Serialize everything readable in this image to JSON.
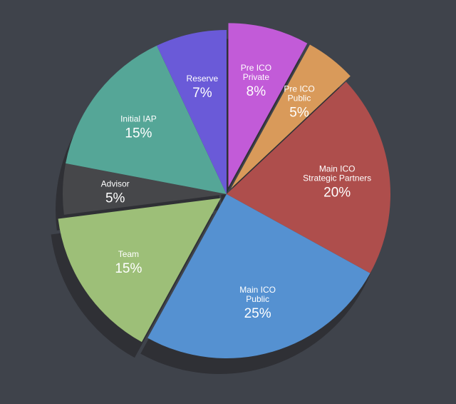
{
  "chart_data": {
    "type": "pie",
    "labels": [
      [
        "Pre ICO",
        "Private"
      ],
      [
        "Pre ICO",
        "Public"
      ],
      [
        "Main ICO",
        "Strategic Partners"
      ],
      [
        "Main ICO",
        "Public"
      ],
      [
        "Team"
      ],
      [
        "Advisor"
      ],
      [
        "Initial IAP"
      ],
      [
        "Reserve"
      ]
    ],
    "values": [
      8,
      5,
      20,
      25,
      15,
      5,
      15,
      7
    ],
    "value_labels": [
      "8%",
      "5%",
      "20%",
      "25%",
      "15%",
      "5%",
      "15%",
      "7%"
    ],
    "colors": [
      "#c25bd8",
      "#d99a5a",
      "#ae4e4c",
      "#5591d1",
      "#9dbf78",
      "#46474a",
      "#55a697",
      "#6a5ad8"
    ]
  }
}
